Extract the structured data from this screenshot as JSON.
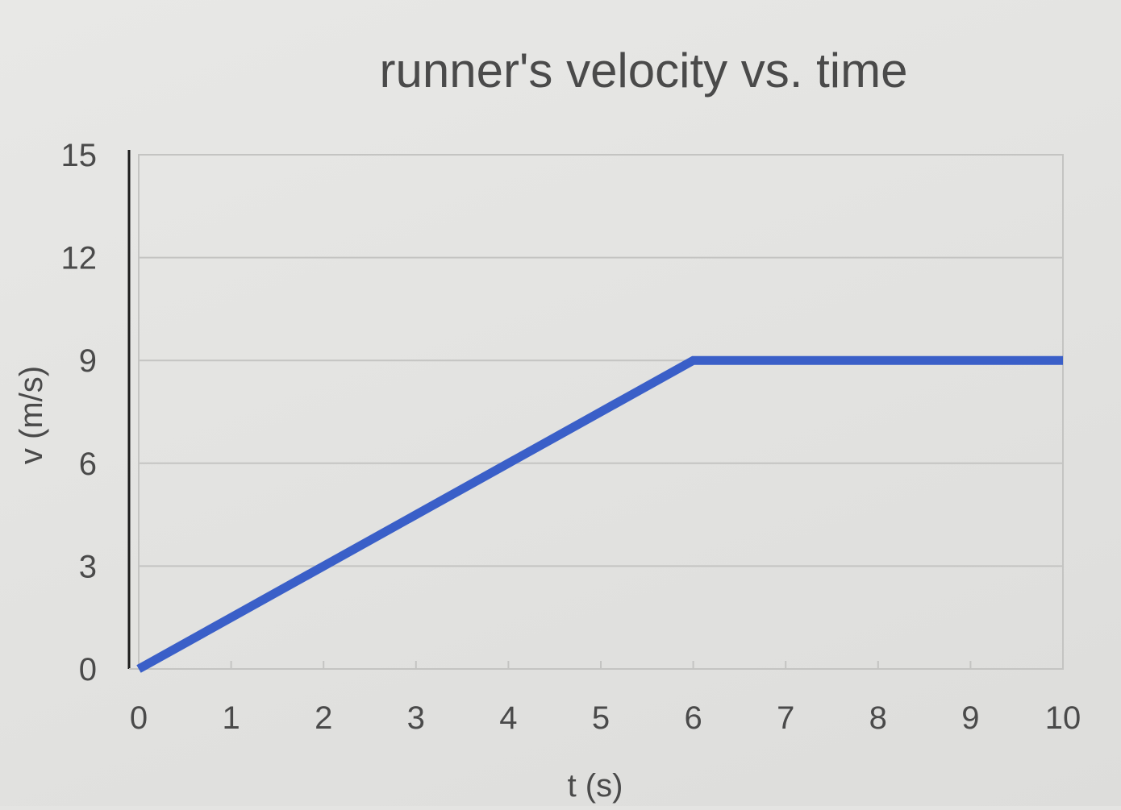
{
  "chart_data": {
    "type": "line",
    "title": "runner's velocity  vs. time",
    "xlabel": "t (s)",
    "ylabel": "v (m/s)",
    "xlim": [
      0,
      10
    ],
    "ylim": [
      0,
      15
    ],
    "xticks": [
      "0",
      "1",
      "2",
      "3",
      "4",
      "5",
      "6",
      "7",
      "8",
      "9",
      "10"
    ],
    "yticks": [
      "0",
      "3",
      "6",
      "9",
      "12",
      "15"
    ],
    "grid": "horizontal",
    "legend": "none",
    "series": [
      {
        "x": [
          0,
          6,
          10
        ],
        "y": [
          0,
          9,
          9
        ],
        "color": "#3a5fc8"
      }
    ],
    "colors": {
      "line": "#3a5fc8",
      "grid": "#c4c4c2",
      "axis": "#1a1a1a",
      "text": "#4a4a4a"
    }
  }
}
